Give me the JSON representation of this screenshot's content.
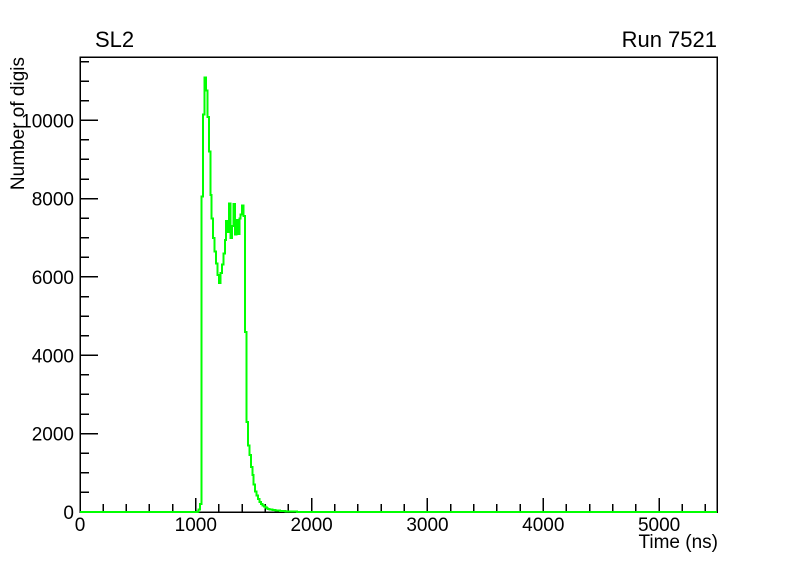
{
  "page": {
    "background_color": "#ffffff",
    "frame_color": "#000000"
  },
  "header": {
    "title": "SL2",
    "run_label": "Run 7521"
  },
  "axes": {
    "x": {
      "title": "Time (ns)",
      "tick_values": [
        0,
        1000,
        2000,
        3000,
        4000,
        5000
      ],
      "tick_labels": [
        "0",
        "1000",
        "2000",
        "3000",
        "4000",
        "5000"
      ],
      "minor_step": 200
    },
    "y": {
      "title": "Number of digis",
      "tick_values": [
        0,
        2000,
        4000,
        6000,
        8000,
        10000
      ],
      "tick_labels": [
        "0",
        "2000",
        "4000",
        "6000",
        "8000",
        "10000"
      ],
      "minor_step": 500
    }
  },
  "chart_data": {
    "type": "line",
    "subtype": "step-histogram",
    "title": "SL2",
    "annotation": "Run 7521",
    "xlabel": "Time (ns)",
    "ylabel": "Number of digis",
    "xlim": [
      0,
      5500
    ],
    "ylim": [
      0,
      11617
    ],
    "x_major_tick_step": 1000,
    "x_minor_tick_step": 200,
    "y_major_tick_step": 2000,
    "y_minor_tick_step": 500,
    "grid": false,
    "legend": "none",
    "line_color": "#00ff00",
    "axis_color": "#000000",
    "baseline_count": 0,
    "peak": {
      "t_ns": 1080,
      "count": 11100
    },
    "dip": {
      "t_ns": 1200,
      "count": 5850
    },
    "bins": {
      "start_ns": 1000,
      "width_ns": 12.5,
      "counts": [
        5,
        15,
        60,
        200,
        8050,
        10150,
        11100,
        10760,
        10080,
        9200,
        8100,
        7500,
        7000,
        6650,
        6350,
        6050,
        5850,
        6100,
        6320,
        6600,
        6950,
        7430,
        7150,
        7880,
        6990,
        7300,
        7860,
        7090,
        7450,
        7100,
        7490,
        7600,
        7830,
        7560,
        4600,
        2300,
        1700,
        1450,
        1150,
        950,
        700,
        520,
        420,
        330,
        260,
        210,
        170,
        140,
        110,
        90,
        78,
        68,
        60,
        54,
        48,
        43,
        38,
        34,
        30,
        27,
        24,
        21,
        19,
        17,
        15,
        13,
        11,
        9,
        8,
        7,
        6,
        5,
        4,
        3,
        2,
        2
      ]
    }
  }
}
